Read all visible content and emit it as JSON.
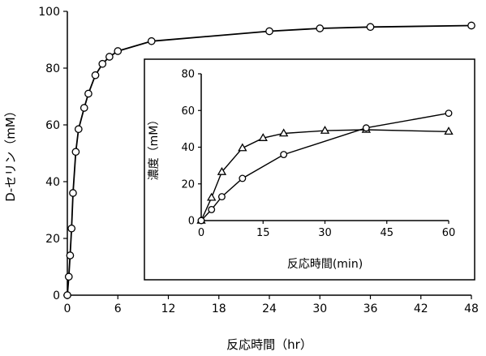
{
  "chart_data": [
    {
      "type": "line",
      "ylabel": "D-セリン（mM）",
      "xlabel": "反応時間（hr）",
      "xlim": [
        0,
        48
      ],
      "ylim": [
        0,
        100
      ],
      "xticks": [
        "0",
        "6",
        "12",
        "18",
        "24",
        "30",
        "36",
        "42",
        "48"
      ],
      "yticks": [
        "0",
        "20",
        "40",
        "60",
        "80",
        "100"
      ],
      "grid": false,
      "series": [
        {
          "marker": "circle",
          "x": [
            0,
            0.17,
            0.33,
            0.5,
            0.67,
            1.0,
            1.33,
            2.0,
            2.5,
            3.33,
            4.17,
            5.0,
            6.0,
            10.0,
            24.0,
            30.0,
            36.0,
            48.0
          ],
          "y": [
            0,
            6.5,
            14,
            23.5,
            36,
            50.5,
            58.5,
            66,
            71,
            77.5,
            81.5,
            84,
            86,
            89.5,
            93,
            94,
            94.5,
            95
          ]
        }
      ]
    },
    {
      "type": "line",
      "inset": true,
      "ylabel": "濃度（mM）",
      "xlabel": "反応時間(min)",
      "xlim": [
        0,
        60
      ],
      "ylim": [
        0,
        80
      ],
      "xticks": [
        "0",
        "15",
        "30",
        "45",
        "60"
      ],
      "yticks": [
        "0",
        "20",
        "40",
        "60",
        "80"
      ],
      "grid": false,
      "series": [
        {
          "marker": "triangle",
          "x": [
            0,
            2.5,
            5,
            10,
            15,
            20,
            30,
            40,
            60
          ],
          "y": [
            0,
            12.5,
            26.5,
            39.5,
            45,
            47.5,
            49,
            49.5,
            48.5
          ]
        },
        {
          "marker": "circle",
          "x": [
            0,
            2.5,
            5,
            10,
            20,
            40,
            60
          ],
          "y": [
            0,
            6,
            13,
            23,
            36,
            50.5,
            58.5
          ]
        }
      ]
    }
  ]
}
